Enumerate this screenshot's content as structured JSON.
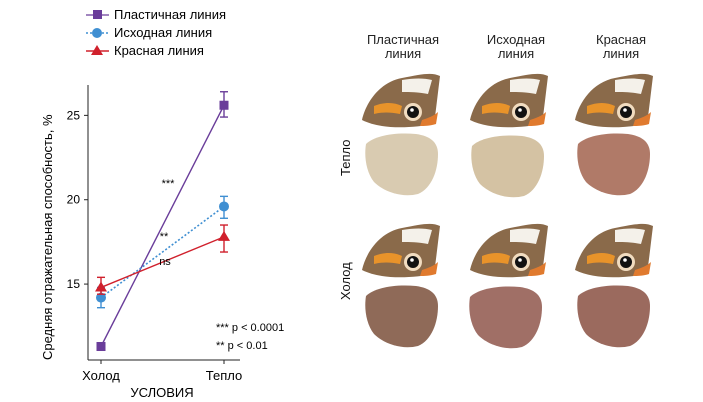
{
  "chart_data": {
    "type": "line",
    "xlabel": "УСЛОВИЯ",
    "ylabel": "Средняя отражательная способность, %",
    "categories": [
      "Холод",
      "Тепло"
    ],
    "yticks": [
      15,
      20,
      25
    ],
    "ylim": [
      10.5,
      26.8
    ],
    "series": [
      {
        "name": "Пластичная линия",
        "values": [
          11.3,
          25.6
        ],
        "err_low": [
          11.3,
          24.9
        ],
        "err_high": [
          11.3,
          26.4
        ],
        "color": "#6a3d9a",
        "marker": "square",
        "line": "solid"
      },
      {
        "name": "Исходная линия",
        "values": [
          14.2,
          19.6
        ],
        "err_low": [
          13.6,
          18.9
        ],
        "err_high": [
          14.8,
          20.2
        ],
        "color": "#3f8fd2",
        "marker": "circle",
        "line": "dotted"
      },
      {
        "name": "Красная линия",
        "values": [
          14.8,
          17.8
        ],
        "err_low": [
          14.4,
          16.9
        ],
        "err_high": [
          15.4,
          18.5
        ],
        "color": "#d0202c",
        "marker": "triangle",
        "line": "solid"
      }
    ],
    "annotations": [
      "***",
      "**",
      "ns"
    ],
    "significance_notes": [
      "*** p < 0.0001",
      "** p < 0.01"
    ]
  },
  "panel": {
    "columns": [
      "Пластичная\nлиния",
      "Исходная\nлиния",
      "Красная\nлиния"
    ],
    "rows": [
      "Тепло",
      "Холод"
    ]
  },
  "colors": {
    "upper_wing_brown": "#8a6a4a",
    "warm_pale_under": "#d9cbb1",
    "warm_red_under": "#b07a68",
    "cold_red_under": "#9b6a5e"
  }
}
